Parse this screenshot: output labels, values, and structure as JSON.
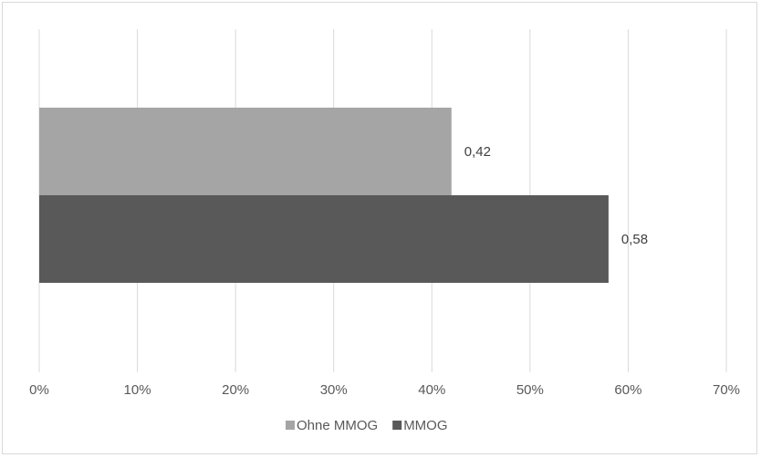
{
  "chart_data": {
    "type": "bar",
    "orientation": "horizontal",
    "title": "",
    "xlabel": "",
    "ylabel": "",
    "xlim": [
      0,
      0.7
    ],
    "x_ticks": [
      0,
      0.1,
      0.2,
      0.3,
      0.4,
      0.5,
      0.6,
      0.7
    ],
    "x_tick_labels": [
      "0%",
      "10%",
      "20%",
      "30%",
      "40%",
      "50%",
      "60%",
      "70%"
    ],
    "grid": true,
    "legend_position": "bottom",
    "series": [
      {
        "name": "Ohne MMOG",
        "values": [
          0.42
        ],
        "data_label": "0,42",
        "color": "#a5a5a5"
      },
      {
        "name": "MMOG",
        "values": [
          0.58
        ],
        "data_label": "0,58",
        "color": "#595959"
      }
    ]
  }
}
